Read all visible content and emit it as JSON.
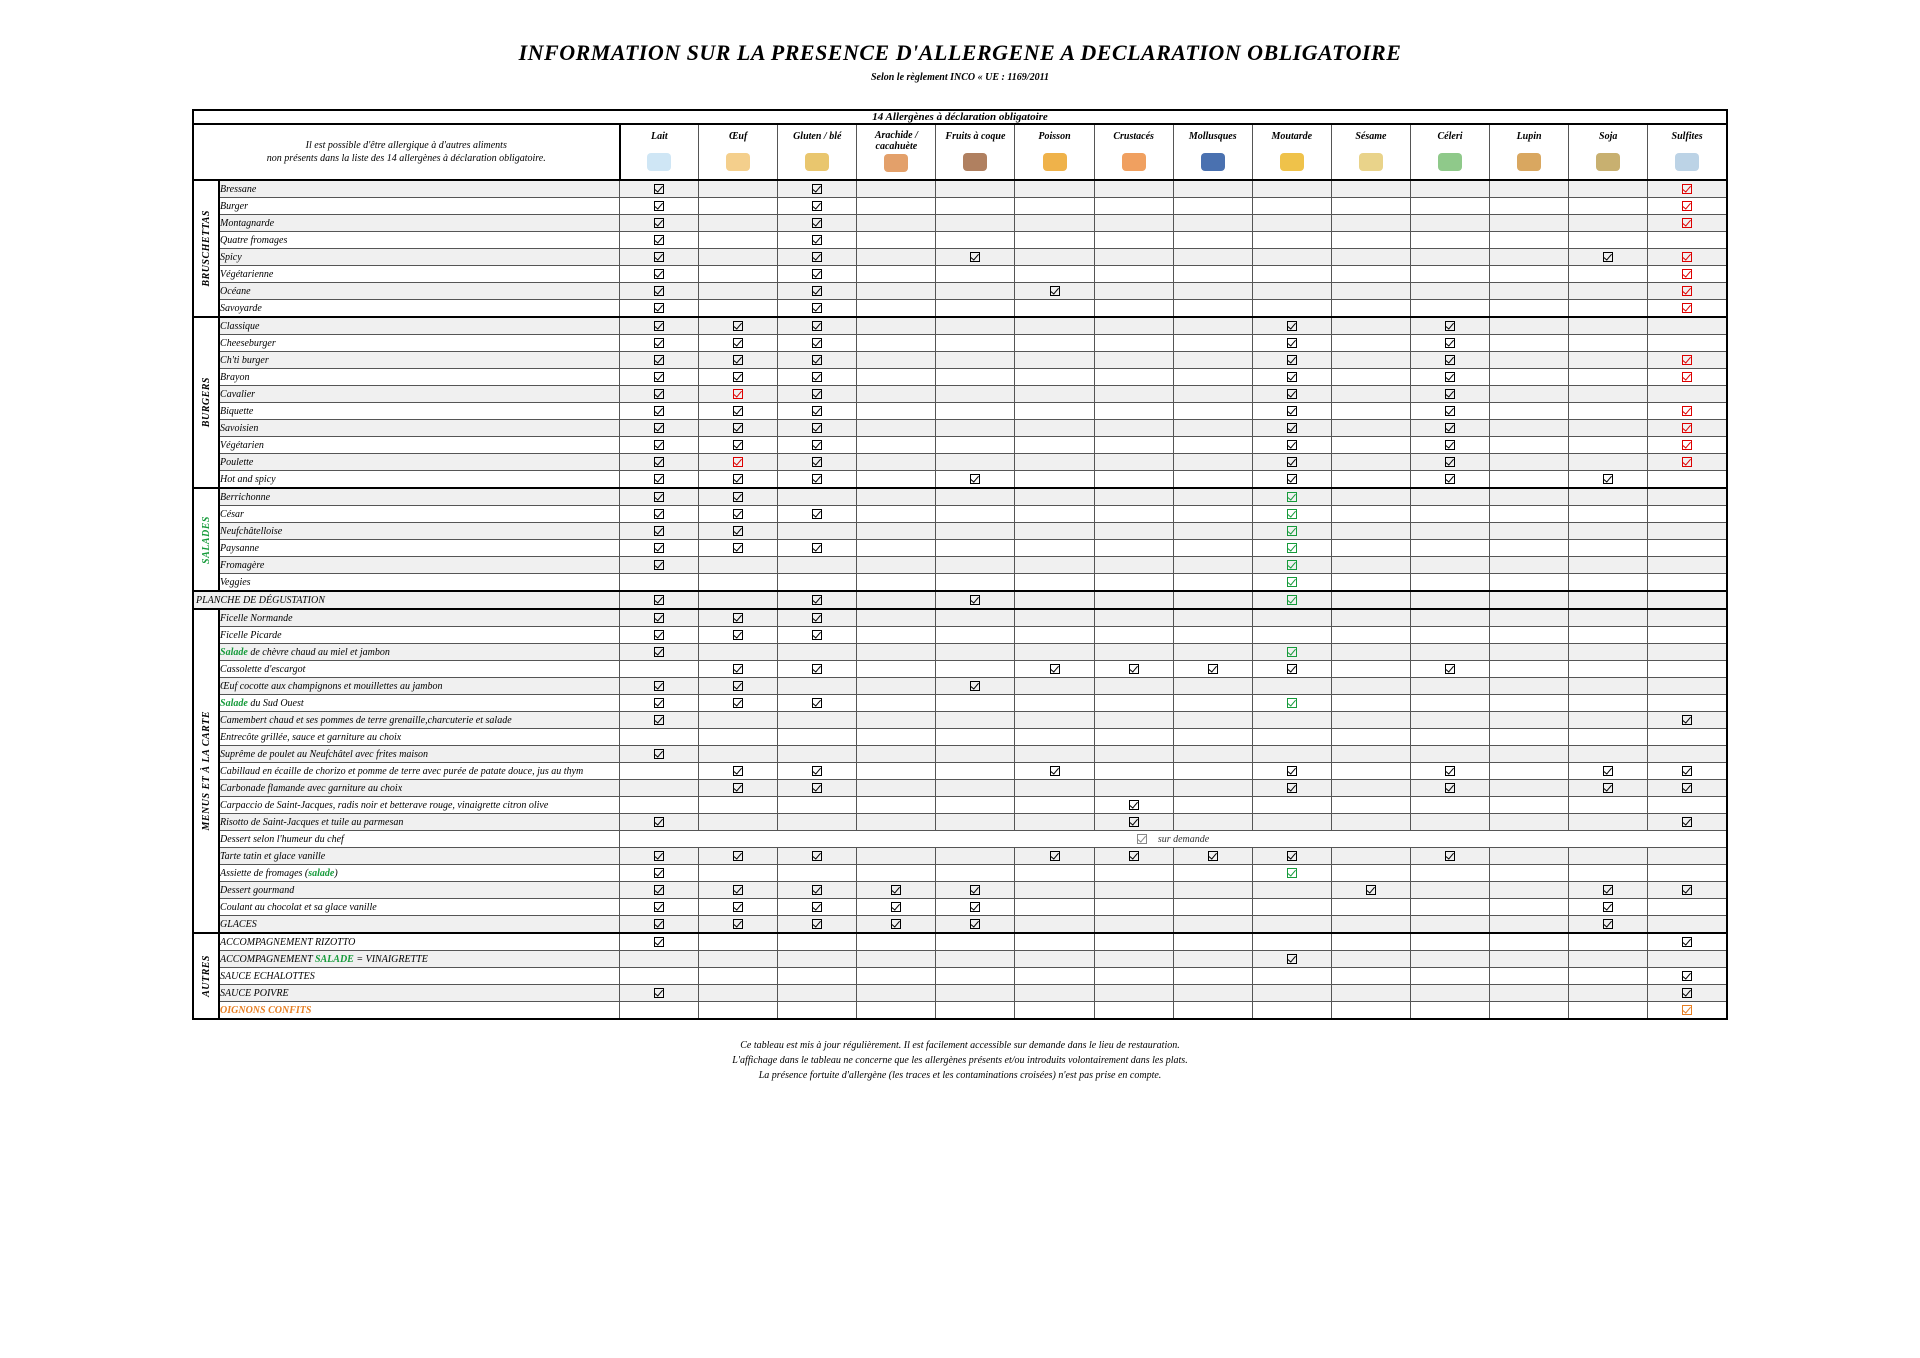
{
  "title": "INFORMATION SUR LA PRESENCE D'ALLERGENE A DECLARATION OBLIGATOIRE",
  "subtitle": "Selon le règlement INCO « UE : 1169/2011",
  "table_caption": "14 Allergènes à déclaration obligatoire",
  "header_note_line1": "Il est possible d'être allergique à d'autres aliments",
  "header_note_line2": "non présents dans la liste des 14 allergènes à déclaration obligatoire.",
  "allergen_columns": [
    {
      "key": "lait",
      "label": "Lait",
      "icon_color": "#cfe6f5"
    },
    {
      "key": "oeuf",
      "label": "Œuf",
      "icon_color": "#f4cf8c"
    },
    {
      "key": "gluten",
      "label": "Gluten / blé",
      "icon_color": "#e9c66e"
    },
    {
      "key": "arachide",
      "label": "Arachide / cacahuète",
      "icon_color": "#e3a06a"
    },
    {
      "key": "fruits_coque",
      "label": "Fruits à coque",
      "icon_color": "#b08060"
    },
    {
      "key": "poisson",
      "label": "Poisson",
      "icon_color": "#efb24a"
    },
    {
      "key": "crustaces",
      "label": "Crustacés",
      "icon_color": "#f0a060"
    },
    {
      "key": "mollusques",
      "label": "Mollusques",
      "icon_color": "#4a71b0"
    },
    {
      "key": "moutarde",
      "label": "Moutarde",
      "icon_color": "#efc24a"
    },
    {
      "key": "sesame",
      "label": "Sésame",
      "icon_color": "#e9d38a"
    },
    {
      "key": "celeri",
      "label": "Céleri",
      "icon_color": "#8fc98a"
    },
    {
      "key": "lupin",
      "label": "Lupin",
      "icon_color": "#d9a760"
    },
    {
      "key": "soja",
      "label": "Soja",
      "icon_color": "#c8b070"
    },
    {
      "key": "sulfites",
      "label": "Sulfites",
      "icon_color": "#bcd3e6"
    }
  ],
  "check_styles": {
    "b": "black",
    "r": "red",
    "g": "green",
    "o": "orange",
    "y": "grey"
  },
  "categories": [
    {
      "key": "bruschettas",
      "label": "BRUSCHETTAS",
      "label_color": "#000",
      "rows": [
        {
          "name": "Bressane",
          "alt": true,
          "marks": {
            "lait": "b",
            "gluten": "b",
            "sulfites": "r"
          }
        },
        {
          "name": "Burger",
          "marks": {
            "lait": "b",
            "gluten": "b",
            "sulfites": "r"
          }
        },
        {
          "name": "Montagnarde",
          "alt": true,
          "marks": {
            "lait": "b",
            "gluten": "b",
            "sulfites": "r"
          }
        },
        {
          "name": "Quatre fromages",
          "marks": {
            "lait": "b",
            "gluten": "b"
          }
        },
        {
          "name": "Spicy",
          "alt": true,
          "marks": {
            "lait": "b",
            "gluten": "b",
            "fruits_coque": "b",
            "soja": "b",
            "sulfites": "r"
          }
        },
        {
          "name": "Végétarienne",
          "marks": {
            "lait": "b",
            "gluten": "b",
            "sulfites": "r"
          }
        },
        {
          "name": "Océane",
          "alt": true,
          "marks": {
            "lait": "b",
            "gluten": "b",
            "poisson": "b",
            "sulfites": "r"
          }
        },
        {
          "name": "Savoyarde",
          "marks": {
            "lait": "b",
            "gluten": "b",
            "sulfites": "r"
          }
        }
      ]
    },
    {
      "key": "burgers",
      "label": "BURGERS",
      "label_color": "#000",
      "rows": [
        {
          "name": "Classique",
          "alt": true,
          "marks": {
            "lait": "b",
            "oeuf": "b",
            "gluten": "b",
            "moutarde": "b",
            "celeri": "b"
          }
        },
        {
          "name": "Cheeseburger",
          "marks": {
            "lait": "b",
            "oeuf": "b",
            "gluten": "b",
            "moutarde": "b",
            "celeri": "b"
          }
        },
        {
          "name": "Ch'ti burger",
          "alt": true,
          "marks": {
            "lait": "b",
            "oeuf": "b",
            "gluten": "b",
            "moutarde": "b",
            "celeri": "b",
            "sulfites": "r"
          }
        },
        {
          "name": "Brayon",
          "marks": {
            "lait": "b",
            "oeuf": "b",
            "gluten": "b",
            "moutarde": "b",
            "celeri": "b",
            "sulfites": "r"
          }
        },
        {
          "name": "Cavalier",
          "alt": true,
          "marks": {
            "lait": "b",
            "oeuf": "r",
            "gluten": "b",
            "moutarde": "b",
            "celeri": "b"
          }
        },
        {
          "name": "Biquette",
          "marks": {
            "lait": "b",
            "oeuf": "b",
            "gluten": "b",
            "moutarde": "b",
            "celeri": "b",
            "sulfites": "r"
          }
        },
        {
          "name": "Savoisien",
          "alt": true,
          "marks": {
            "lait": "b",
            "oeuf": "b",
            "gluten": "b",
            "moutarde": "b",
            "celeri": "b",
            "sulfites": "r"
          }
        },
        {
          "name": "Végétarien",
          "marks": {
            "lait": "b",
            "oeuf": "b",
            "gluten": "b",
            "moutarde": "b",
            "celeri": "b",
            "sulfites": "r"
          }
        },
        {
          "name": "Poulette",
          "alt": true,
          "marks": {
            "lait": "b",
            "oeuf": "r",
            "gluten": "b",
            "moutarde": "b",
            "celeri": "b",
            "sulfites": "r"
          }
        },
        {
          "name": "Hot and spicy",
          "marks": {
            "lait": "b",
            "oeuf": "b",
            "gluten": "b",
            "fruits_coque": "b",
            "moutarde": "b",
            "celeri": "b",
            "soja": "b"
          }
        }
      ]
    },
    {
      "key": "salades",
      "label": "SALADES",
      "label_color": "#169b3b",
      "class": "salades",
      "rows": [
        {
          "name": "Berrichonne",
          "alt": true,
          "marks": {
            "lait": "b",
            "oeuf": "b",
            "moutarde": "g"
          }
        },
        {
          "name": "César",
          "marks": {
            "lait": "b",
            "oeuf": "b",
            "gluten": "b",
            "moutarde": "g"
          }
        },
        {
          "name": "Neufchâtelloise",
          "alt": true,
          "marks": {
            "lait": "b",
            "oeuf": "b",
            "moutarde": "g"
          }
        },
        {
          "name": "Paysanne",
          "marks": {
            "lait": "b",
            "oeuf": "b",
            "gluten": "b",
            "moutarde": "g"
          }
        },
        {
          "name": "Fromagère",
          "alt": true,
          "marks": {
            "lait": "b",
            "moutarde": "g"
          }
        },
        {
          "name": "Veggies",
          "marks": {
            "moutarde": "g"
          }
        }
      ]
    },
    {
      "key": "degustation",
      "full_row": true,
      "label": "PLANCHE DE DÉGUSTATION",
      "rows": [
        {
          "name": "PLANCHE DE DÉGUSTATION",
          "alt": true,
          "full": true,
          "marks": {
            "lait": "b",
            "gluten": "b",
            "fruits_coque": "b",
            "moutarde": "g"
          }
        }
      ]
    },
    {
      "key": "carte",
      "label": "MENUS ET À LA CARTE",
      "label_color": "#000",
      "rows": [
        {
          "name": "Ficelle Normande",
          "alt": true,
          "marks": {
            "lait": "b",
            "oeuf": "b",
            "gluten": "b"
          }
        },
        {
          "name": "Ficelle Picarde",
          "marks": {
            "lait": "b",
            "oeuf": "b",
            "gluten": "b"
          }
        },
        {
          "name_html": "<span class='green-word'>Salade</span> de chèvre chaud au miel et jambon",
          "alt": true,
          "marks": {
            "lait": "b",
            "moutarde": "g"
          }
        },
        {
          "name": "Cassolette d'escargot",
          "marks": {
            "oeuf": "b",
            "gluten": "b",
            "poisson": "b",
            "crustaces": "b",
            "mollusques": "b",
            "moutarde": "b",
            "celeri": "b"
          }
        },
        {
          "name": "Œuf cocotte aux champignons et mouillettes au jambon",
          "alt": true,
          "marks": {
            "lait": "b",
            "oeuf": "b",
            "fruits_coque": "b"
          }
        },
        {
          "name_html": "<span class='green-word'>Salade</span> du Sud Ouest",
          "marks": {
            "lait": "b",
            "oeuf": "b",
            "gluten": "b",
            "moutarde": "g"
          }
        },
        {
          "name": "Camembert chaud et ses pommes de terre grenaille,charcuterie et salade",
          "alt": true,
          "marks": {
            "lait": "b",
            "sulfites": "b"
          }
        },
        {
          "name": "Entrecôte grillée, sauce et garniture au choix",
          "marks": {}
        },
        {
          "name": "Suprême de poulet au Neufchâtel avec frites maison",
          "alt": true,
          "marks": {
            "lait": "b"
          }
        },
        {
          "name": "Cabillaud en écaille de chorizo et pomme de terre avec purée de patate douce, jus au thym",
          "marks": {
            "oeuf": "b",
            "gluten": "b",
            "poisson": "b",
            "moutarde": "b",
            "celeri": "b",
            "soja": "b",
            "sulfites": "b"
          }
        },
        {
          "name": "Carbonade flamande avec garniture au choix",
          "alt": true,
          "marks": {
            "oeuf": "b",
            "gluten": "b",
            "moutarde": "b",
            "celeri": "b",
            "soja": "b",
            "sulfites": "b"
          }
        },
        {
          "name": "Carpaccio de Saint-Jacques, radis noir et betterave rouge, vinaigrette citron olive",
          "marks": {
            "crustaces": "b"
          }
        },
        {
          "name": "Risotto de Saint-Jacques et tuile au parmesan",
          "alt": true,
          "marks": {
            "lait": "b",
            "crustaces": "b",
            "sulfites": "b"
          }
        },
        {
          "name": "Dessert selon l'humeur du chef",
          "note": "sur demande",
          "note_style": "y"
        },
        {
          "name": "Tarte tatin et glace vanille",
          "alt": true,
          "marks": {
            "lait": "b",
            "oeuf": "b",
            "gluten": "b",
            "poisson": "b",
            "crustaces": "b",
            "mollusques": "b",
            "moutarde": "b",
            "celeri": "b"
          }
        },
        {
          "name_html": "Assiette de fromages (<span class='green-word'>salade</span>)",
          "marks": {
            "lait": "b",
            "moutarde": "g"
          }
        },
        {
          "name": "Dessert gourmand",
          "alt": true,
          "marks": {
            "lait": "b",
            "oeuf": "b",
            "gluten": "b",
            "arachide": "b",
            "fruits_coque": "b",
            "sesame": "b",
            "soja": "b",
            "sulfites": "b"
          }
        },
        {
          "name": "Coulant au chocolat et sa glace vanille",
          "marks": {
            "lait": "b",
            "oeuf": "b",
            "gluten": "b",
            "arachide": "b",
            "fruits_coque": "b",
            "soja": "b"
          }
        },
        {
          "name": "GLACES",
          "alt": true,
          "marks": {
            "lait": "b",
            "oeuf": "b",
            "gluten": "b",
            "arachide": "b",
            "fruits_coque": "b",
            "soja": "b"
          }
        }
      ]
    },
    {
      "key": "autres",
      "label": "AUTRES",
      "label_color": "#000",
      "rows": [
        {
          "name": "ACCOMPAGNEMENT RIZOTTO",
          "marks": {
            "lait": "b",
            "sulfites": "b"
          }
        },
        {
          "name_html": "ACCOMPAGNEMENT <span class='green-word'>SALADE</span> = VINAIGRETTE",
          "alt": true,
          "marks": {
            "moutarde": "b"
          }
        },
        {
          "name": "SAUCE ECHALOTTES",
          "marks": {
            "sulfites": "b"
          }
        },
        {
          "name": "SAUCE POIVRE",
          "alt": true,
          "marks": {
            "lait": "b",
            "sulfites": "b"
          }
        },
        {
          "name_html": "<span class='orange-word'>OIGNONS CONFITS</span>",
          "marks": {
            "sulfites": "o"
          }
        }
      ]
    }
  ],
  "footnotes": [
    "Ce tableau est mis à jour régulièrement. Il est facilement accessible sur demande dans le lieu de restauration.",
    "L'affichage dans le tableau ne concerne que les allergènes présents et/ou introduits volontairement dans les plats.",
    "La présence fortuite d'allergène (les traces et les contaminations croisées) n'est pas prise en compte."
  ]
}
